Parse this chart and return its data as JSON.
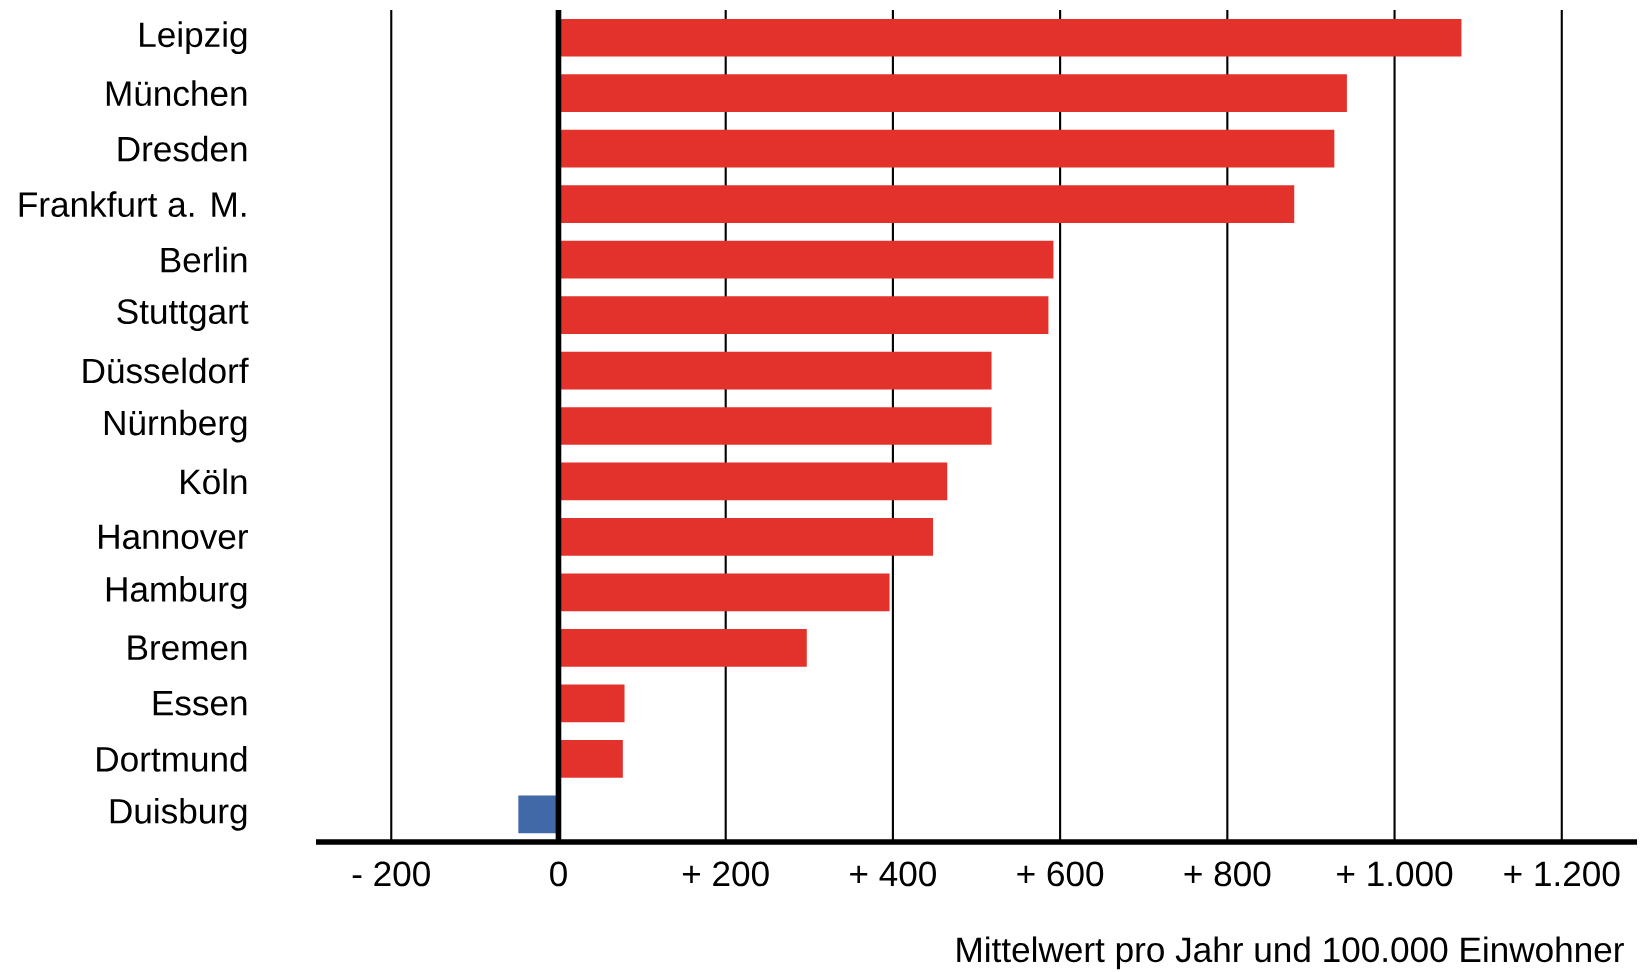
{
  "chart_data": {
    "type": "bar",
    "orientation": "horizontal",
    "categories": [
      "Leipzig",
      "München",
      "Dresden",
      "Frankfurt a. M.",
      "Berlin",
      "Stuttgart",
      "Düsseldorf",
      "Nürnberg",
      "Köln",
      "Hannover",
      "Hamburg",
      "Bremen",
      "Essen",
      "Dortmund",
      "Duisburg"
    ],
    "values": [
      1080,
      943,
      928,
      880,
      592,
      586,
      518,
      518,
      465,
      448,
      396,
      297,
      79,
      77,
      -48
    ],
    "colors": [
      "#e3312b",
      "#e3312b",
      "#e3312b",
      "#e3312b",
      "#e3312b",
      "#e3312b",
      "#e3312b",
      "#e3312b",
      "#e3312b",
      "#e3312b",
      "#e3312b",
      "#e3312b",
      "#e3312b",
      "#e3312b",
      "#4169a8"
    ],
    "xlabel": "Mittelwert pro Jahr und 100.000 Einwohner",
    "xlim": [
      -290,
      1290
    ],
    "xticks": [
      {
        "value": -200,
        "label": "- 200"
      },
      0,
      {
        "value": 200,
        "label": "+ 200"
      },
      {
        "value": 400,
        "label": "+ 400"
      },
      {
        "value": 600,
        "label": "+ 600"
      },
      {
        "value": 800,
        "label": "+ 800"
      },
      {
        "value": 1000,
        "label": "+ 1.000"
      },
      {
        "value": 1200,
        "label": "+ 1.200"
      }
    ],
    "grid": "x",
    "ref_lines": [
      {
        "axis": "x",
        "value": 0,
        "color": "#000000"
      }
    ]
  }
}
